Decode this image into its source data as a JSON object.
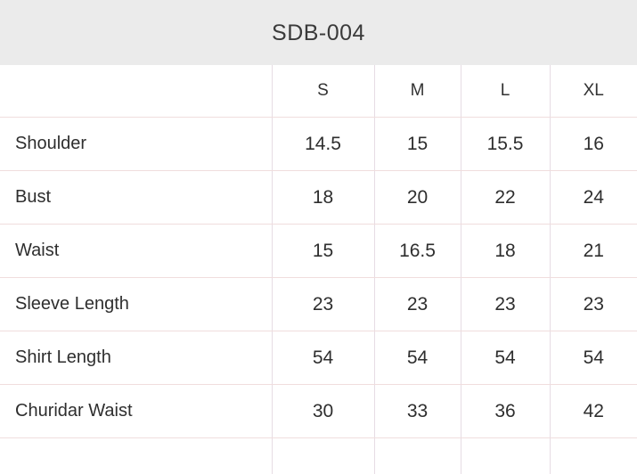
{
  "chart_data": {
    "type": "table",
    "title": "SDB-004",
    "columns": [
      "",
      "S",
      "M",
      "L",
      "XL"
    ],
    "rows": [
      [
        "Shoulder",
        14.5,
        15,
        15.5,
        16
      ],
      [
        "Bust",
        18,
        20,
        22,
        24
      ],
      [
        "Waist",
        15,
        16.5,
        18,
        21
      ],
      [
        "Sleeve Length",
        23,
        23,
        23,
        23
      ],
      [
        "Shirt Length",
        54,
        54,
        54,
        54
      ],
      [
        "Churidar Waist",
        30,
        33,
        36,
        42
      ]
    ]
  },
  "colors": {
    "title_bar_bg": "#ebebeb",
    "row_border": "#f0dddd",
    "column_border": "#e6dce4",
    "text": "#2e2e2e",
    "title_text": "#3a3a3a"
  }
}
